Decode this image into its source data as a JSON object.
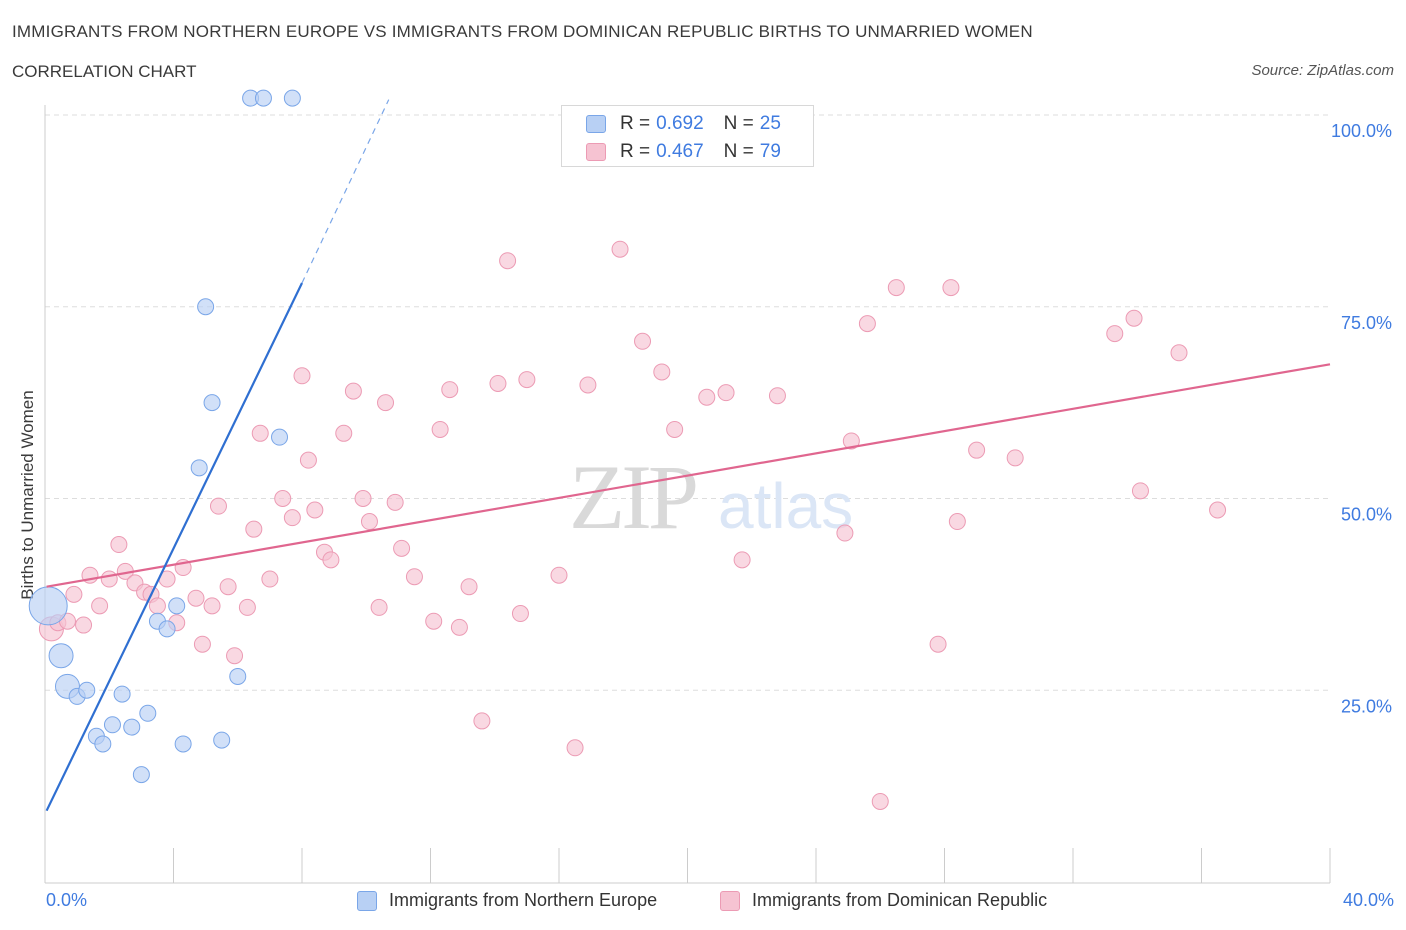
{
  "header": {
    "title": "IMMIGRANTS FROM NORTHERN EUROPE VS IMMIGRANTS FROM DOMINICAN REPUBLIC BIRTHS TO UNMARRIED WOMEN",
    "subtitle": "CORRELATION CHART",
    "source": "Source: ZipAtlas.com"
  },
  "watermark": {
    "zip": "ZIP",
    "atlas": "atlas"
  },
  "colors": {
    "blue_fill": "#b8d0f4",
    "blue_stroke": "#7aa6e8",
    "blue_line": "#2f6fd1",
    "pink_fill": "#f6c3d2",
    "pink_stroke": "#ec9bb4",
    "pink_line": "#e0668f",
    "tick_text": "#3f7be0",
    "grid": "#dddddd"
  },
  "legend": {
    "rows": [
      {
        "r_label": "R = ",
        "r_value": "0.692",
        "n_label": "N = ",
        "n_value": "25"
      },
      {
        "r_label": "R = ",
        "r_value": "0.467",
        "n_label": "N = ",
        "n_value": "79"
      }
    ]
  },
  "bottom_legend": {
    "series1": "Immigrants from Northern Europe",
    "series2": "Immigrants from Dominican Republic"
  },
  "chart_data": {
    "type": "scatter",
    "title": "IMMIGRANTS FROM NORTHERN EUROPE VS IMMIGRANTS FROM DOMINICAN REPUBLIC BIRTHS TO UNMARRIED WOMEN",
    "xlabel": "",
    "ylabel": "Births to Unmarried Women",
    "xlim": [
      0,
      40
    ],
    "ylim": [
      0,
      100
    ],
    "x_tick_labels": [
      "0.0%",
      "40.0%"
    ],
    "y_tick_labels": [
      "25.0%",
      "50.0%",
      "75.0%",
      "100.0%"
    ],
    "y_tick_values": [
      25,
      50,
      75,
      100
    ],
    "grid": true,
    "series": [
      {
        "name": "Immigrants from Northern Europe",
        "R": 0.692,
        "N": 25,
        "points": [
          {
            "x": 0.1,
            "y": 36.0,
            "s": 3
          },
          {
            "x": 0.5,
            "y": 29.5,
            "s": 2
          },
          {
            "x": 0.7,
            "y": 25.5,
            "s": 2
          },
          {
            "x": 1.0,
            "y": 24.2,
            "s": 1
          },
          {
            "x": 1.3,
            "y": 25.0,
            "s": 1
          },
          {
            "x": 1.6,
            "y": 19.0,
            "s": 1
          },
          {
            "x": 1.8,
            "y": 18.0,
            "s": 1
          },
          {
            "x": 2.1,
            "y": 20.5,
            "s": 1
          },
          {
            "x": 2.4,
            "y": 24.5,
            "s": 1
          },
          {
            "x": 2.7,
            "y": 20.2,
            "s": 1
          },
          {
            "x": 3.0,
            "y": 14.0,
            "s": 1
          },
          {
            "x": 3.2,
            "y": 22.0,
            "s": 1
          },
          {
            "x": 3.5,
            "y": 34.0,
            "s": 1
          },
          {
            "x": 3.8,
            "y": 33.0,
            "s": 1
          },
          {
            "x": 4.1,
            "y": 36.0,
            "s": 1
          },
          {
            "x": 4.3,
            "y": 18.0,
            "s": 1
          },
          {
            "x": 4.8,
            "y": 54.0,
            "s": 1
          },
          {
            "x": 5.0,
            "y": 75.0,
            "s": 1
          },
          {
            "x": 5.2,
            "y": 62.5,
            "s": 1
          },
          {
            "x": 5.5,
            "y": 18.5,
            "s": 1
          },
          {
            "x": 6.0,
            "y": 26.8,
            "s": 1
          },
          {
            "x": 6.4,
            "y": 102.2,
            "s": 1
          },
          {
            "x": 6.8,
            "y": 102.2,
            "s": 1
          },
          {
            "x": 7.3,
            "y": 58.0,
            "s": 1
          },
          {
            "x": 7.7,
            "y": 102.2,
            "s": 1
          }
        ],
        "trend": {
          "x0": 0.05,
          "y0": 9.3,
          "x1": 8.0,
          "y1": 78.1,
          "dash_to_x": 10.7,
          "dash_to_y": 102.0
        }
      },
      {
        "name": "Immigrants from Dominican Republic",
        "R": 0.467,
        "N": 79,
        "points": [
          {
            "x": 0.2,
            "y": 33.0,
            "s": 2
          },
          {
            "x": 0.4,
            "y": 33.8,
            "s": 1
          },
          {
            "x": 0.7,
            "y": 34.0,
            "s": 1
          },
          {
            "x": 0.9,
            "y": 37.5,
            "s": 1
          },
          {
            "x": 1.2,
            "y": 33.5,
            "s": 1
          },
          {
            "x": 1.4,
            "y": 40.0,
            "s": 1
          },
          {
            "x": 1.7,
            "y": 36.0,
            "s": 1
          },
          {
            "x": 2.0,
            "y": 39.5,
            "s": 1
          },
          {
            "x": 2.3,
            "y": 44.0,
            "s": 1
          },
          {
            "x": 2.5,
            "y": 40.5,
            "s": 1
          },
          {
            "x": 2.8,
            "y": 39.0,
            "s": 1
          },
          {
            "x": 3.1,
            "y": 37.8,
            "s": 1
          },
          {
            "x": 3.3,
            "y": 37.5,
            "s": 1
          },
          {
            "x": 3.5,
            "y": 36.0,
            "s": 1
          },
          {
            "x": 3.8,
            "y": 39.5,
            "s": 1
          },
          {
            "x": 4.1,
            "y": 33.8,
            "s": 1
          },
          {
            "x": 4.3,
            "y": 41.0,
            "s": 1
          },
          {
            "x": 4.7,
            "y": 37.0,
            "s": 1
          },
          {
            "x": 4.9,
            "y": 31.0,
            "s": 1
          },
          {
            "x": 5.2,
            "y": 36.0,
            "s": 1
          },
          {
            "x": 5.4,
            "y": 49.0,
            "s": 1
          },
          {
            "x": 5.7,
            "y": 38.5,
            "s": 1
          },
          {
            "x": 5.9,
            "y": 29.5,
            "s": 1
          },
          {
            "x": 6.3,
            "y": 35.8,
            "s": 1
          },
          {
            "x": 6.5,
            "y": 46.0,
            "s": 1
          },
          {
            "x": 6.7,
            "y": 58.5,
            "s": 1
          },
          {
            "x": 7.0,
            "y": 39.5,
            "s": 1
          },
          {
            "x": 7.4,
            "y": 50.0,
            "s": 1
          },
          {
            "x": 7.7,
            "y": 47.5,
            "s": 1
          },
          {
            "x": 8.0,
            "y": 66.0,
            "s": 1
          },
          {
            "x": 8.2,
            "y": 55.0,
            "s": 1
          },
          {
            "x": 8.4,
            "y": 48.5,
            "s": 1
          },
          {
            "x": 8.7,
            "y": 43.0,
            "s": 1
          },
          {
            "x": 8.9,
            "y": 42.0,
            "s": 1
          },
          {
            "x": 9.3,
            "y": 58.5,
            "s": 1
          },
          {
            "x": 9.6,
            "y": 64.0,
            "s": 1
          },
          {
            "x": 9.9,
            "y": 50.0,
            "s": 1
          },
          {
            "x": 10.1,
            "y": 47.0,
            "s": 1
          },
          {
            "x": 10.4,
            "y": 35.8,
            "s": 1
          },
          {
            "x": 10.6,
            "y": 62.5,
            "s": 1
          },
          {
            "x": 10.9,
            "y": 49.5,
            "s": 1
          },
          {
            "x": 11.1,
            "y": 43.5,
            "s": 1
          },
          {
            "x": 11.5,
            "y": 39.8,
            "s": 1
          },
          {
            "x": 12.1,
            "y": 34.0,
            "s": 1
          },
          {
            "x": 12.3,
            "y": 59.0,
            "s": 1
          },
          {
            "x": 12.6,
            "y": 64.2,
            "s": 1
          },
          {
            "x": 12.9,
            "y": 33.2,
            "s": 1
          },
          {
            "x": 13.2,
            "y": 38.5,
            "s": 1
          },
          {
            "x": 13.6,
            "y": 21.0,
            "s": 1
          },
          {
            "x": 14.1,
            "y": 65.0,
            "s": 1
          },
          {
            "x": 14.4,
            "y": 81.0,
            "s": 1
          },
          {
            "x": 14.8,
            "y": 35.0,
            "s": 1
          },
          {
            "x": 15.0,
            "y": 65.5,
            "s": 1
          },
          {
            "x": 16.0,
            "y": 40.0,
            "s": 1
          },
          {
            "x": 16.5,
            "y": 17.5,
            "s": 1
          },
          {
            "x": 16.9,
            "y": 64.8,
            "s": 1
          },
          {
            "x": 17.9,
            "y": 82.5,
            "s": 1
          },
          {
            "x": 18.6,
            "y": 70.5,
            "s": 1
          },
          {
            "x": 19.2,
            "y": 66.5,
            "s": 1
          },
          {
            "x": 19.6,
            "y": 59.0,
            "s": 1
          },
          {
            "x": 20.6,
            "y": 63.2,
            "s": 1
          },
          {
            "x": 21.2,
            "y": 63.8,
            "s": 1
          },
          {
            "x": 21.7,
            "y": 42.0,
            "s": 1
          },
          {
            "x": 22.8,
            "y": 63.4,
            "s": 1
          },
          {
            "x": 24.9,
            "y": 45.5,
            "s": 1
          },
          {
            "x": 25.1,
            "y": 57.5,
            "s": 1
          },
          {
            "x": 25.6,
            "y": 72.8,
            "s": 1
          },
          {
            "x": 26.0,
            "y": 10.5,
            "s": 1
          },
          {
            "x": 26.5,
            "y": 77.5,
            "s": 1
          },
          {
            "x": 27.8,
            "y": 31.0,
            "s": 1
          },
          {
            "x": 28.2,
            "y": 77.5,
            "s": 1
          },
          {
            "x": 28.4,
            "y": 47.0,
            "s": 1
          },
          {
            "x": 29.0,
            "y": 56.3,
            "s": 1
          },
          {
            "x": 30.2,
            "y": 55.3,
            "s": 1
          },
          {
            "x": 33.3,
            "y": 71.5,
            "s": 1
          },
          {
            "x": 33.9,
            "y": 73.5,
            "s": 1
          },
          {
            "x": 34.1,
            "y": 51.0,
            "s": 1
          },
          {
            "x": 35.3,
            "y": 69.0,
            "s": 1
          },
          {
            "x": 36.5,
            "y": 48.5,
            "s": 1
          }
        ],
        "trend": {
          "x0": 0.05,
          "y0": 38.5,
          "x1": 40.0,
          "y1": 67.5
        }
      }
    ]
  }
}
